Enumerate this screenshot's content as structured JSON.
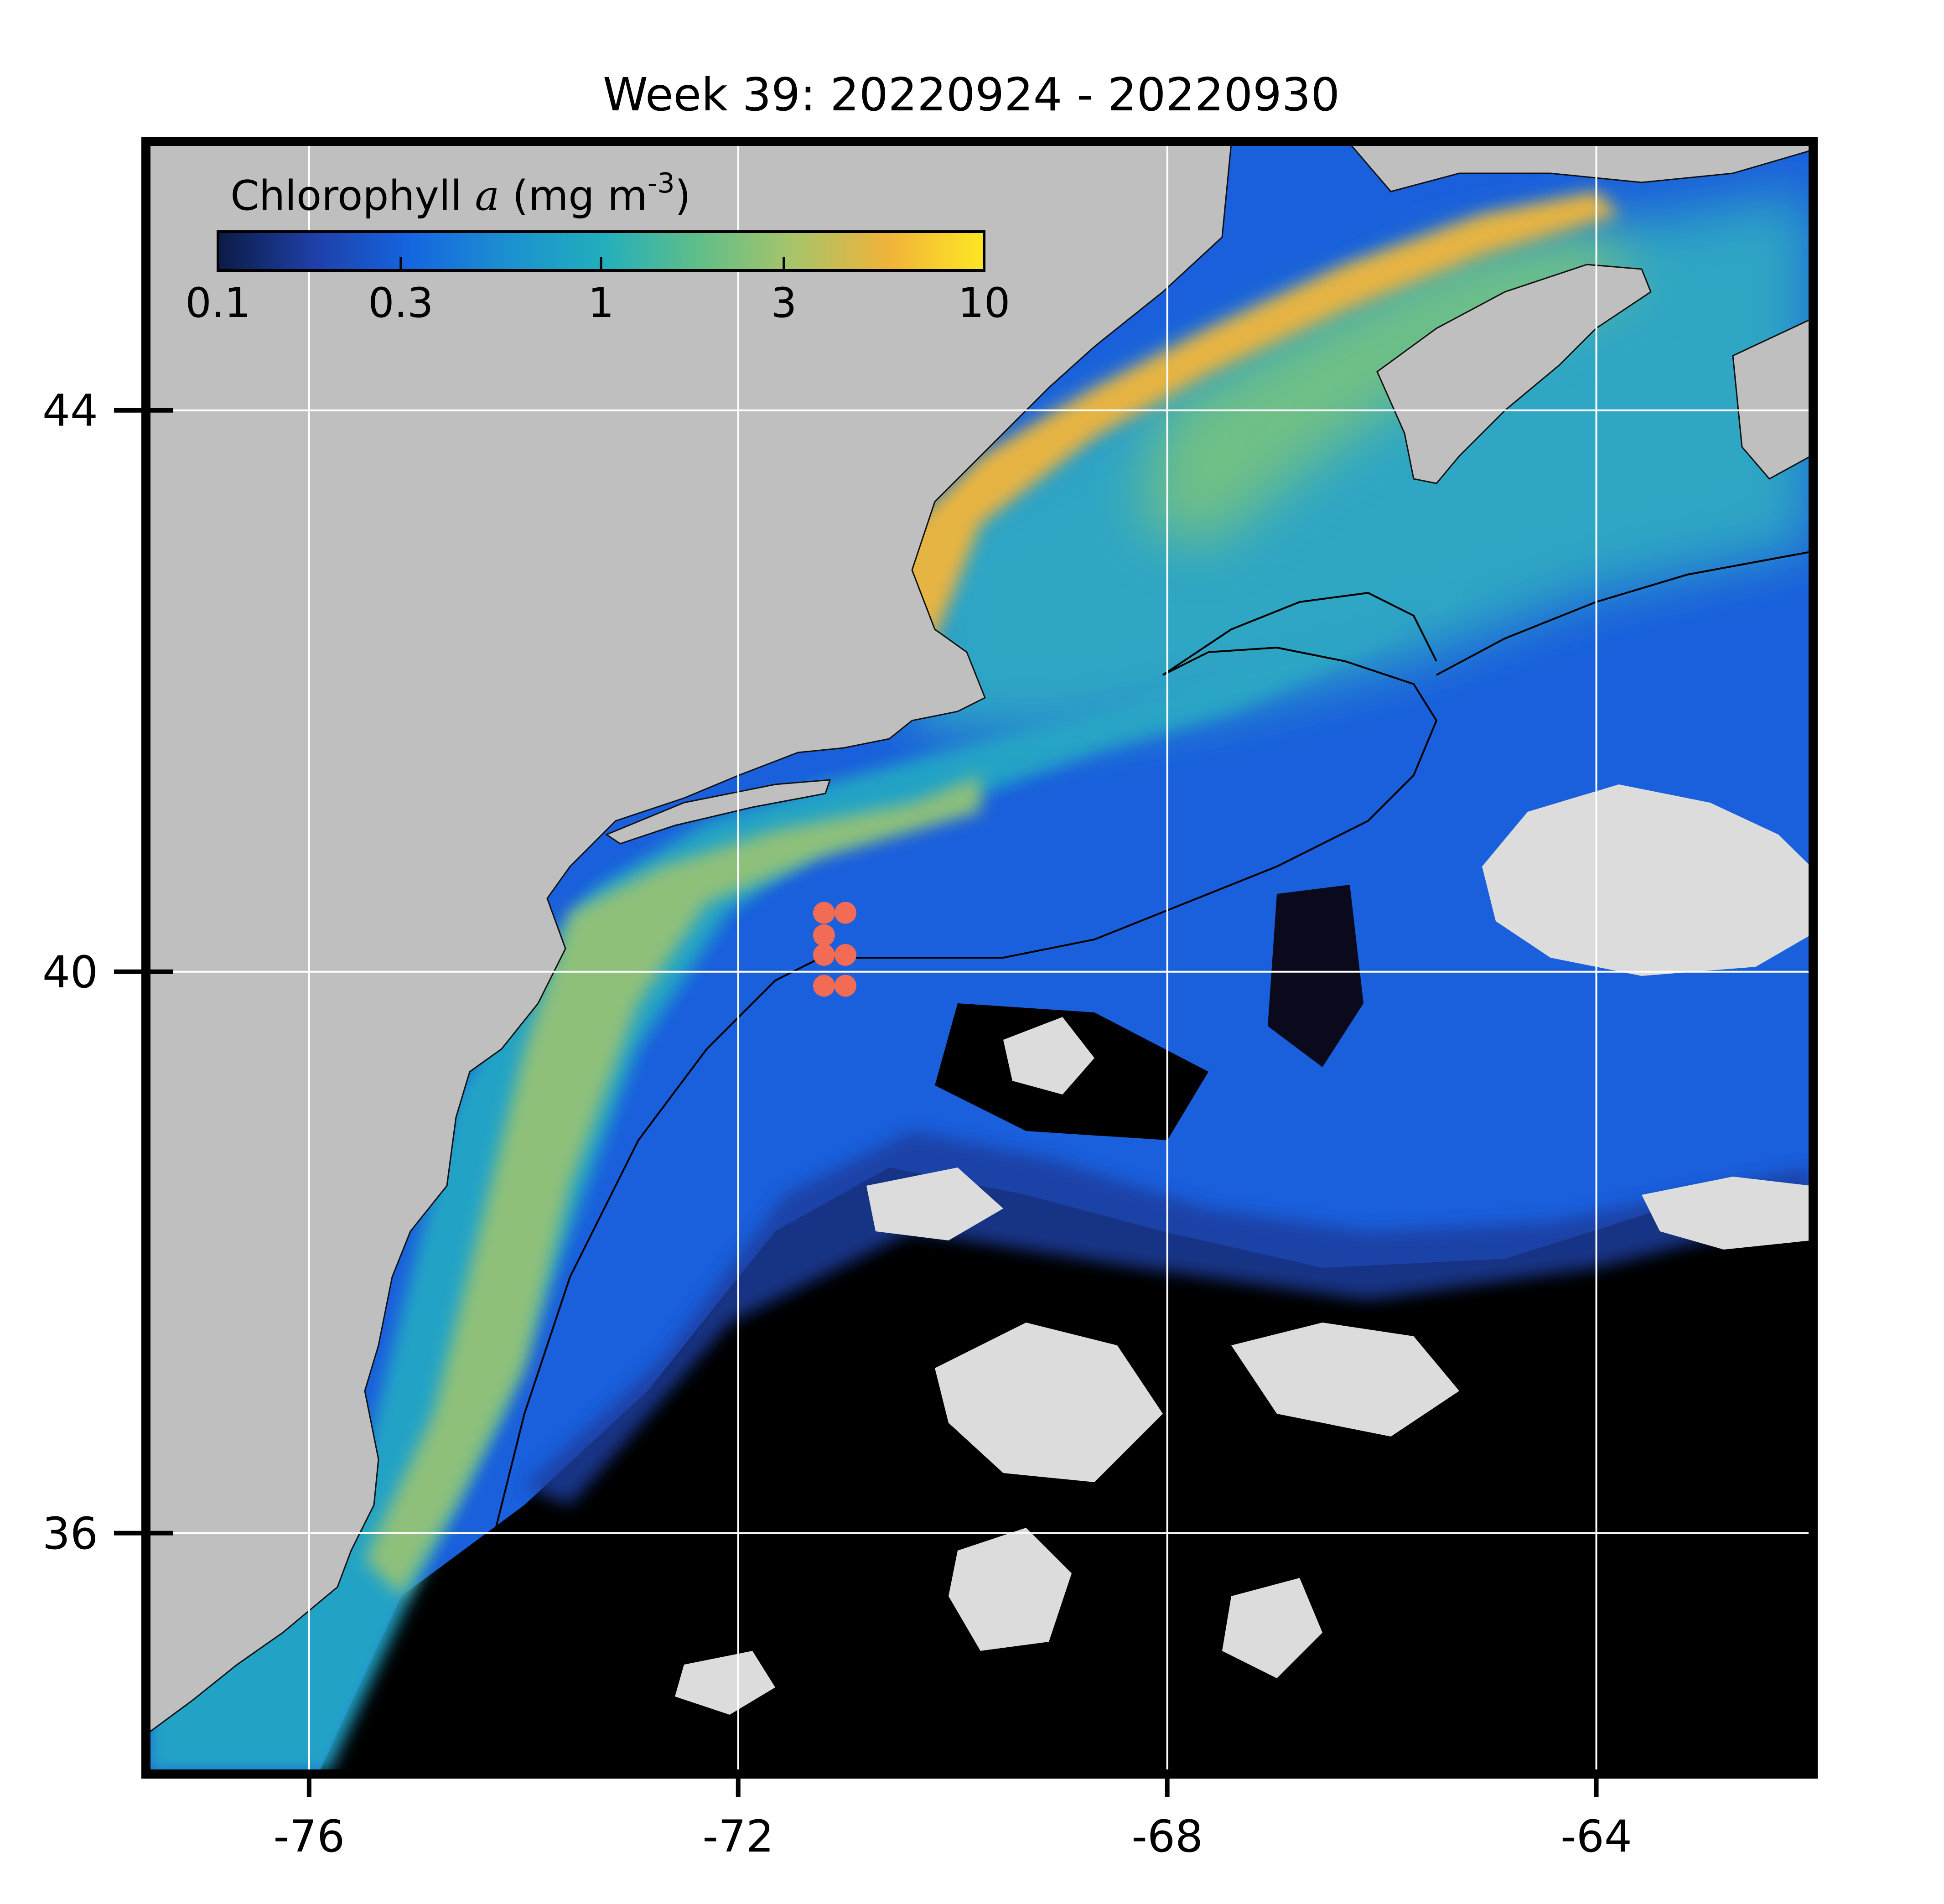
{
  "title": "Week 39: 20220924 - 20220930",
  "map": {
    "lon_range": [
      -77.5,
      -62
    ],
    "lat_range": [
      34.3,
      45.9
    ],
    "lon_ticks": [
      "-76",
      "-72",
      "-68",
      "-64"
    ],
    "lon_tick_values": [
      -76,
      -72,
      -68,
      -64
    ],
    "lat_ticks": [
      "44",
      "40",
      "36"
    ],
    "lat_tick_values": [
      44,
      40,
      36
    ],
    "gridlines": true,
    "colors": {
      "land": "#bfbfbf",
      "no_data": "#000000",
      "cloud": "#dcdcdc",
      "frame": "#000000",
      "gridline": "#ffffff",
      "station_marker": "#f26b55"
    }
  },
  "colorbar": {
    "label_prefix": "Chlorophyll ",
    "label_var": "a",
    "label_units": " (mg m",
    "label_sup": "-3",
    "label_close": ")",
    "scale": "log",
    "ticks": [
      "0.1",
      "0.3",
      "1",
      "3",
      "10"
    ],
    "tick_values": [
      0.1,
      0.3,
      1,
      3,
      10
    ],
    "colors": [
      "#0b1b45",
      "#1f3fa8",
      "#1565e0",
      "#1c8fd0",
      "#21aebd",
      "#5fbe8a",
      "#a7c46a",
      "#f0b33a",
      "#fde724"
    ]
  },
  "stations": {
    "color": "#f26b55",
    "points": [
      {
        "lon": -71.2,
        "lat": 40.42
      },
      {
        "lon": -71.0,
        "lat": 40.42
      },
      {
        "lon": -71.2,
        "lat": 40.26
      },
      {
        "lon": -71.2,
        "lat": 40.12
      },
      {
        "lon": -71.0,
        "lat": 40.12
      },
      {
        "lon": -71.2,
        "lat": 39.9
      },
      {
        "lon": -71.0,
        "lat": 39.9
      }
    ]
  }
}
